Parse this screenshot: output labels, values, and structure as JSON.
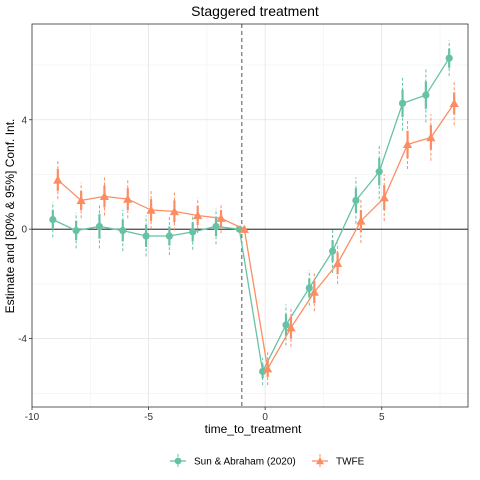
{
  "chart_data": {
    "type": "line",
    "title": "Staggered treatment",
    "xlabel": "time_to_treatment",
    "ylabel": "Estimate and [80% & 95%] Conf. Int.",
    "xlim": [
      -10,
      8.7
    ],
    "ylim": [
      -6.5,
      7.5
    ],
    "x_ticks": [
      -10,
      -5,
      0,
      5
    ],
    "x_tick_labels": [
      "-10",
      "-5",
      "0",
      "5"
    ],
    "y_ticks": [
      -4,
      0,
      4
    ],
    "y_tick_labels": [
      "-4",
      "0",
      "4"
    ],
    "grid": true,
    "reference_lines": {
      "vertical_dashed_x": -1,
      "horizontal_y": 0
    },
    "legend_position": "bottom",
    "series": [
      {
        "name": "Sun & Abraham (2020)",
        "color": "#66c2a5",
        "marker": "circle",
        "x": [
          -9,
          -8,
          -7,
          -6,
          -5,
          -4,
          -3,
          -2,
          -1,
          0,
          1,
          2,
          3,
          4,
          5,
          6,
          7,
          8
        ],
        "y": [
          0.35,
          -0.05,
          0.1,
          -0.05,
          -0.25,
          -0.25,
          -0.1,
          0.1,
          0,
          -5.2,
          -3.5,
          -2.15,
          -0.8,
          1.05,
          2.1,
          4.6,
          4.9,
          6.25
        ],
        "ci80": [
          [
            0.0,
            0.7
          ],
          [
            -0.4,
            0.3
          ],
          [
            -0.35,
            0.55
          ],
          [
            -0.45,
            0.35
          ],
          [
            -0.65,
            0.15
          ],
          [
            -0.6,
            0.1
          ],
          [
            -0.45,
            0.25
          ],
          [
            -0.25,
            0.45
          ],
          [
            0,
            0
          ],
          [
            -5.45,
            -4.95
          ],
          [
            -3.9,
            -3.1
          ],
          [
            -2.5,
            -1.8
          ],
          [
            -1.2,
            -0.4
          ],
          [
            0.6,
            1.5
          ],
          [
            1.6,
            2.6
          ],
          [
            4.1,
            5.1
          ],
          [
            4.4,
            5.4
          ],
          [
            5.9,
            6.6
          ]
        ],
        "ci95": [
          [
            -0.3,
            1.0
          ],
          [
            -0.7,
            0.6
          ],
          [
            -0.7,
            0.9
          ],
          [
            -0.8,
            0.7
          ],
          [
            -1.0,
            0.5
          ],
          [
            -0.95,
            0.45
          ],
          [
            -0.75,
            0.55
          ],
          [
            -0.55,
            0.75
          ],
          [
            0,
            0
          ],
          [
            -5.7,
            -4.7
          ],
          [
            -4.25,
            -2.75
          ],
          [
            -2.8,
            -1.5
          ],
          [
            -1.6,
            0.0
          ],
          [
            0.2,
            1.9
          ],
          [
            1.1,
            3.1
          ],
          [
            3.6,
            5.6
          ],
          [
            3.9,
            5.9
          ],
          [
            5.6,
            6.9
          ]
        ]
      },
      {
        "name": "TWFE",
        "color": "#fc8d62",
        "marker": "triangle",
        "x": [
          -9,
          -8,
          -7,
          -6,
          -5,
          -4,
          -3,
          -2,
          -1,
          0,
          1,
          2,
          3,
          4,
          5,
          6,
          7,
          8
        ],
        "y": [
          1.8,
          1.05,
          1.2,
          1.1,
          0.7,
          0.65,
          0.5,
          0.4,
          0,
          -5.1,
          -3.6,
          -2.3,
          -1.25,
          0.3,
          1.15,
          3.1,
          3.35,
          4.6
        ],
        "ci80": [
          [
            1.4,
            2.2
          ],
          [
            0.7,
            1.4
          ],
          [
            0.8,
            1.6
          ],
          [
            0.7,
            1.5
          ],
          [
            0.3,
            1.1
          ],
          [
            0.25,
            1.05
          ],
          [
            0.15,
            0.85
          ],
          [
            0.1,
            0.7
          ],
          [
            0,
            0
          ],
          [
            -5.4,
            -4.8
          ],
          [
            -4.0,
            -3.2
          ],
          [
            -2.7,
            -1.9
          ],
          [
            -1.65,
            -0.85
          ],
          [
            -0.1,
            0.7
          ],
          [
            0.7,
            1.6
          ],
          [
            2.6,
            3.6
          ],
          [
            2.9,
            3.8
          ],
          [
            4.2,
            5.0
          ]
        ],
        "ci95": [
          [
            1.1,
            2.5
          ],
          [
            0.4,
            1.7
          ],
          [
            0.5,
            1.9
          ],
          [
            0.4,
            1.8
          ],
          [
            0.0,
            1.4
          ],
          [
            -0.05,
            1.35
          ],
          [
            -0.15,
            1.15
          ],
          [
            -0.15,
            0.95
          ],
          [
            0,
            0
          ],
          [
            -5.7,
            -4.5
          ],
          [
            -4.3,
            -2.9
          ],
          [
            -3.0,
            -1.6
          ],
          [
            -2.0,
            -0.5
          ],
          [
            -0.5,
            1.1
          ],
          [
            0.3,
            2.0
          ],
          [
            2.2,
            4.0
          ],
          [
            2.5,
            4.2
          ],
          [
            3.8,
            5.4
          ]
        ]
      }
    ]
  }
}
